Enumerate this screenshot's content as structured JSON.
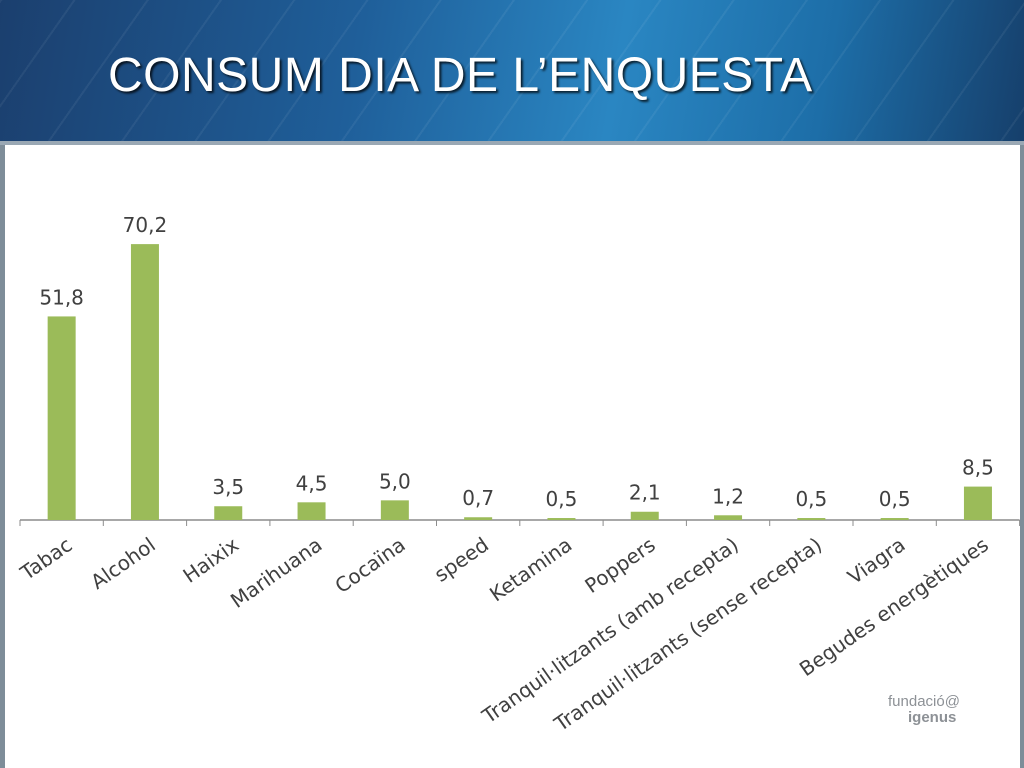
{
  "slide": {
    "title": "CONSUM DIA DE L’ENQUESTA"
  },
  "logo": {
    "line1": "fundació@",
    "line2": "igenus"
  },
  "colors": {
    "bar": "#9bbb59",
    "axis": "#8c8c8c",
    "label": "#404040"
  },
  "chart_data": {
    "type": "bar",
    "title": "",
    "xlabel": "",
    "ylabel": "",
    "ylim": [
      0,
      80
    ],
    "grid": false,
    "categories": [
      "Tabac",
      "Alcohol",
      "Haixix",
      "Marihuana",
      "Cocaïna",
      "speed",
      "Ketamina",
      "Poppers",
      "Tranquil·litzants (amb recepta)",
      "Tranquil·litzants (sense recepta)",
      "Viagra",
      "Begudes energètiques"
    ],
    "values": [
      51.8,
      70.2,
      3.5,
      4.5,
      5.0,
      0.7,
      0.5,
      2.1,
      1.2,
      0.5,
      0.5,
      8.5
    ],
    "data_labels": [
      "51,8",
      "70,2",
      "3,5",
      "4,5",
      "5,0",
      "0,7",
      "0,5",
      "2,1",
      "1,2",
      "0,5",
      "0,5",
      "8,5"
    ]
  }
}
